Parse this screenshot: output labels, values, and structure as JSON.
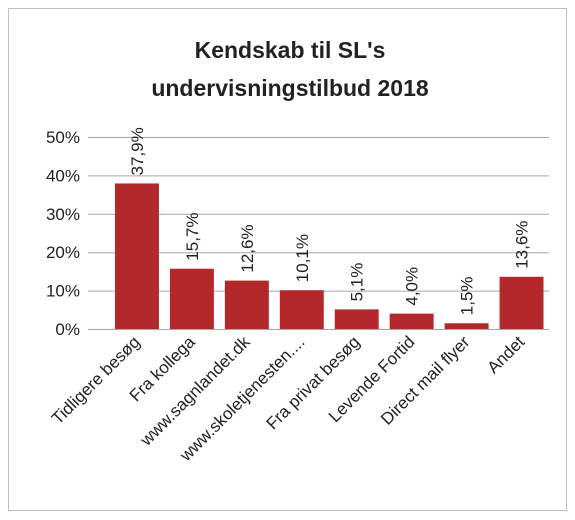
{
  "chart_data": {
    "type": "bar",
    "title": [
      "Kendskab til SL's",
      "undervisningstilbud 2018"
    ],
    "categories": [
      "Tidligere besøg",
      "Fra kollega",
      "www.sagnlandet.dk",
      "www.skoletjenesten....",
      "Fra privat besøg",
      "Levende Fortid",
      "Direct mail flyer",
      "Andet"
    ],
    "values": [
      37.9,
      15.7,
      12.6,
      10.1,
      5.1,
      4.0,
      1.5,
      13.6
    ],
    "value_labels": [
      "37,9%",
      "15,7%",
      "12,6%",
      "10,1%",
      "5,1%",
      "4,0%",
      "1,5%",
      "13,6%"
    ],
    "color": "#b3282b",
    "ylim": [
      0,
      50
    ],
    "yticks": [
      {
        "value": 0,
        "label": "0%"
      },
      {
        "value": 10,
        "label": "10%"
      },
      {
        "value": 20,
        "label": "20%"
      },
      {
        "value": 30,
        "label": "30%"
      },
      {
        "value": 40,
        "label": "40%"
      },
      {
        "value": 50,
        "label": "50%"
      }
    ],
    "grid": true
  }
}
